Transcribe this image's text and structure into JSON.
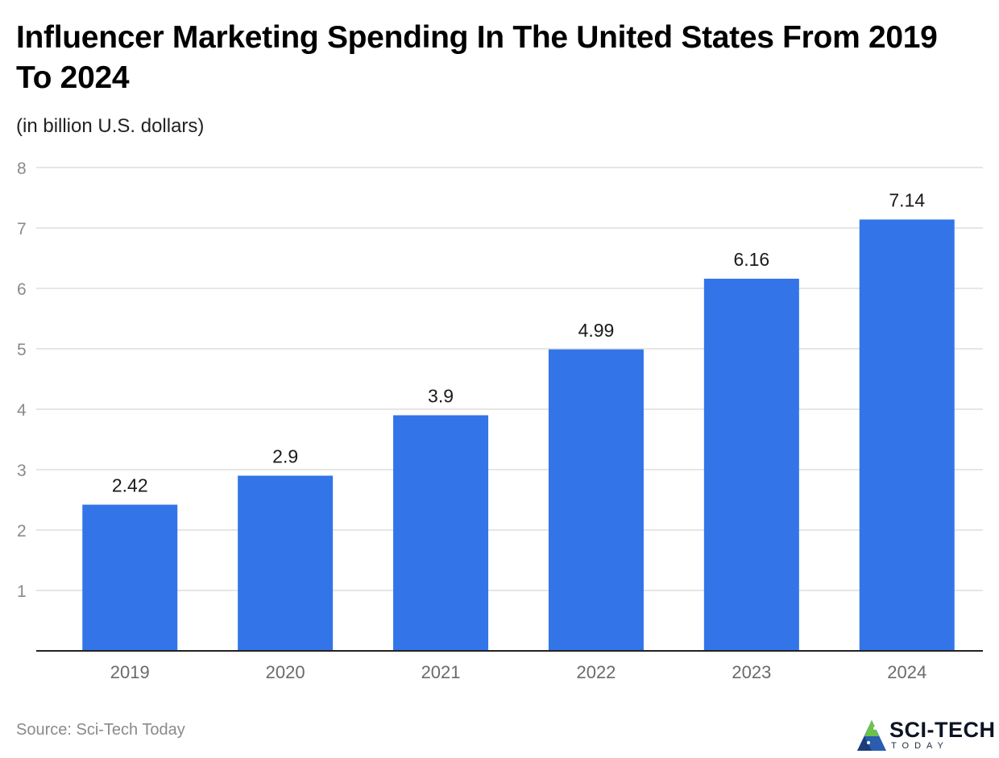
{
  "header": {
    "title": "Influencer Marketing Spending In The United States From 2019 To 2024",
    "subtitle": "(in billion U.S. dollars)"
  },
  "footer": {
    "source": "Source: Sci-Tech Today",
    "logo_name": "SCI-TECH",
    "logo_tagline": "TODAY"
  },
  "colors": {
    "bar": "#3375e8",
    "grid": "#dddddd",
    "axis": "#222222"
  },
  "chart_data": {
    "type": "bar",
    "title": "Influencer Marketing Spending In The United States From 2019 To 2024",
    "subtitle": "(in billion U.S. dollars)",
    "xlabel": "",
    "ylabel": "",
    "categories": [
      "2019",
      "2020",
      "2021",
      "2022",
      "2023",
      "2024"
    ],
    "values": [
      2.42,
      2.9,
      3.9,
      4.99,
      6.16,
      7.14
    ],
    "value_labels": [
      "2.42",
      "2.9",
      "3.9",
      "4.99",
      "6.16",
      "7.14"
    ],
    "ylim": [
      0,
      8
    ],
    "yticks": [
      1,
      2,
      3,
      4,
      5,
      6,
      7,
      8
    ],
    "grid": true,
    "legend": "none"
  }
}
